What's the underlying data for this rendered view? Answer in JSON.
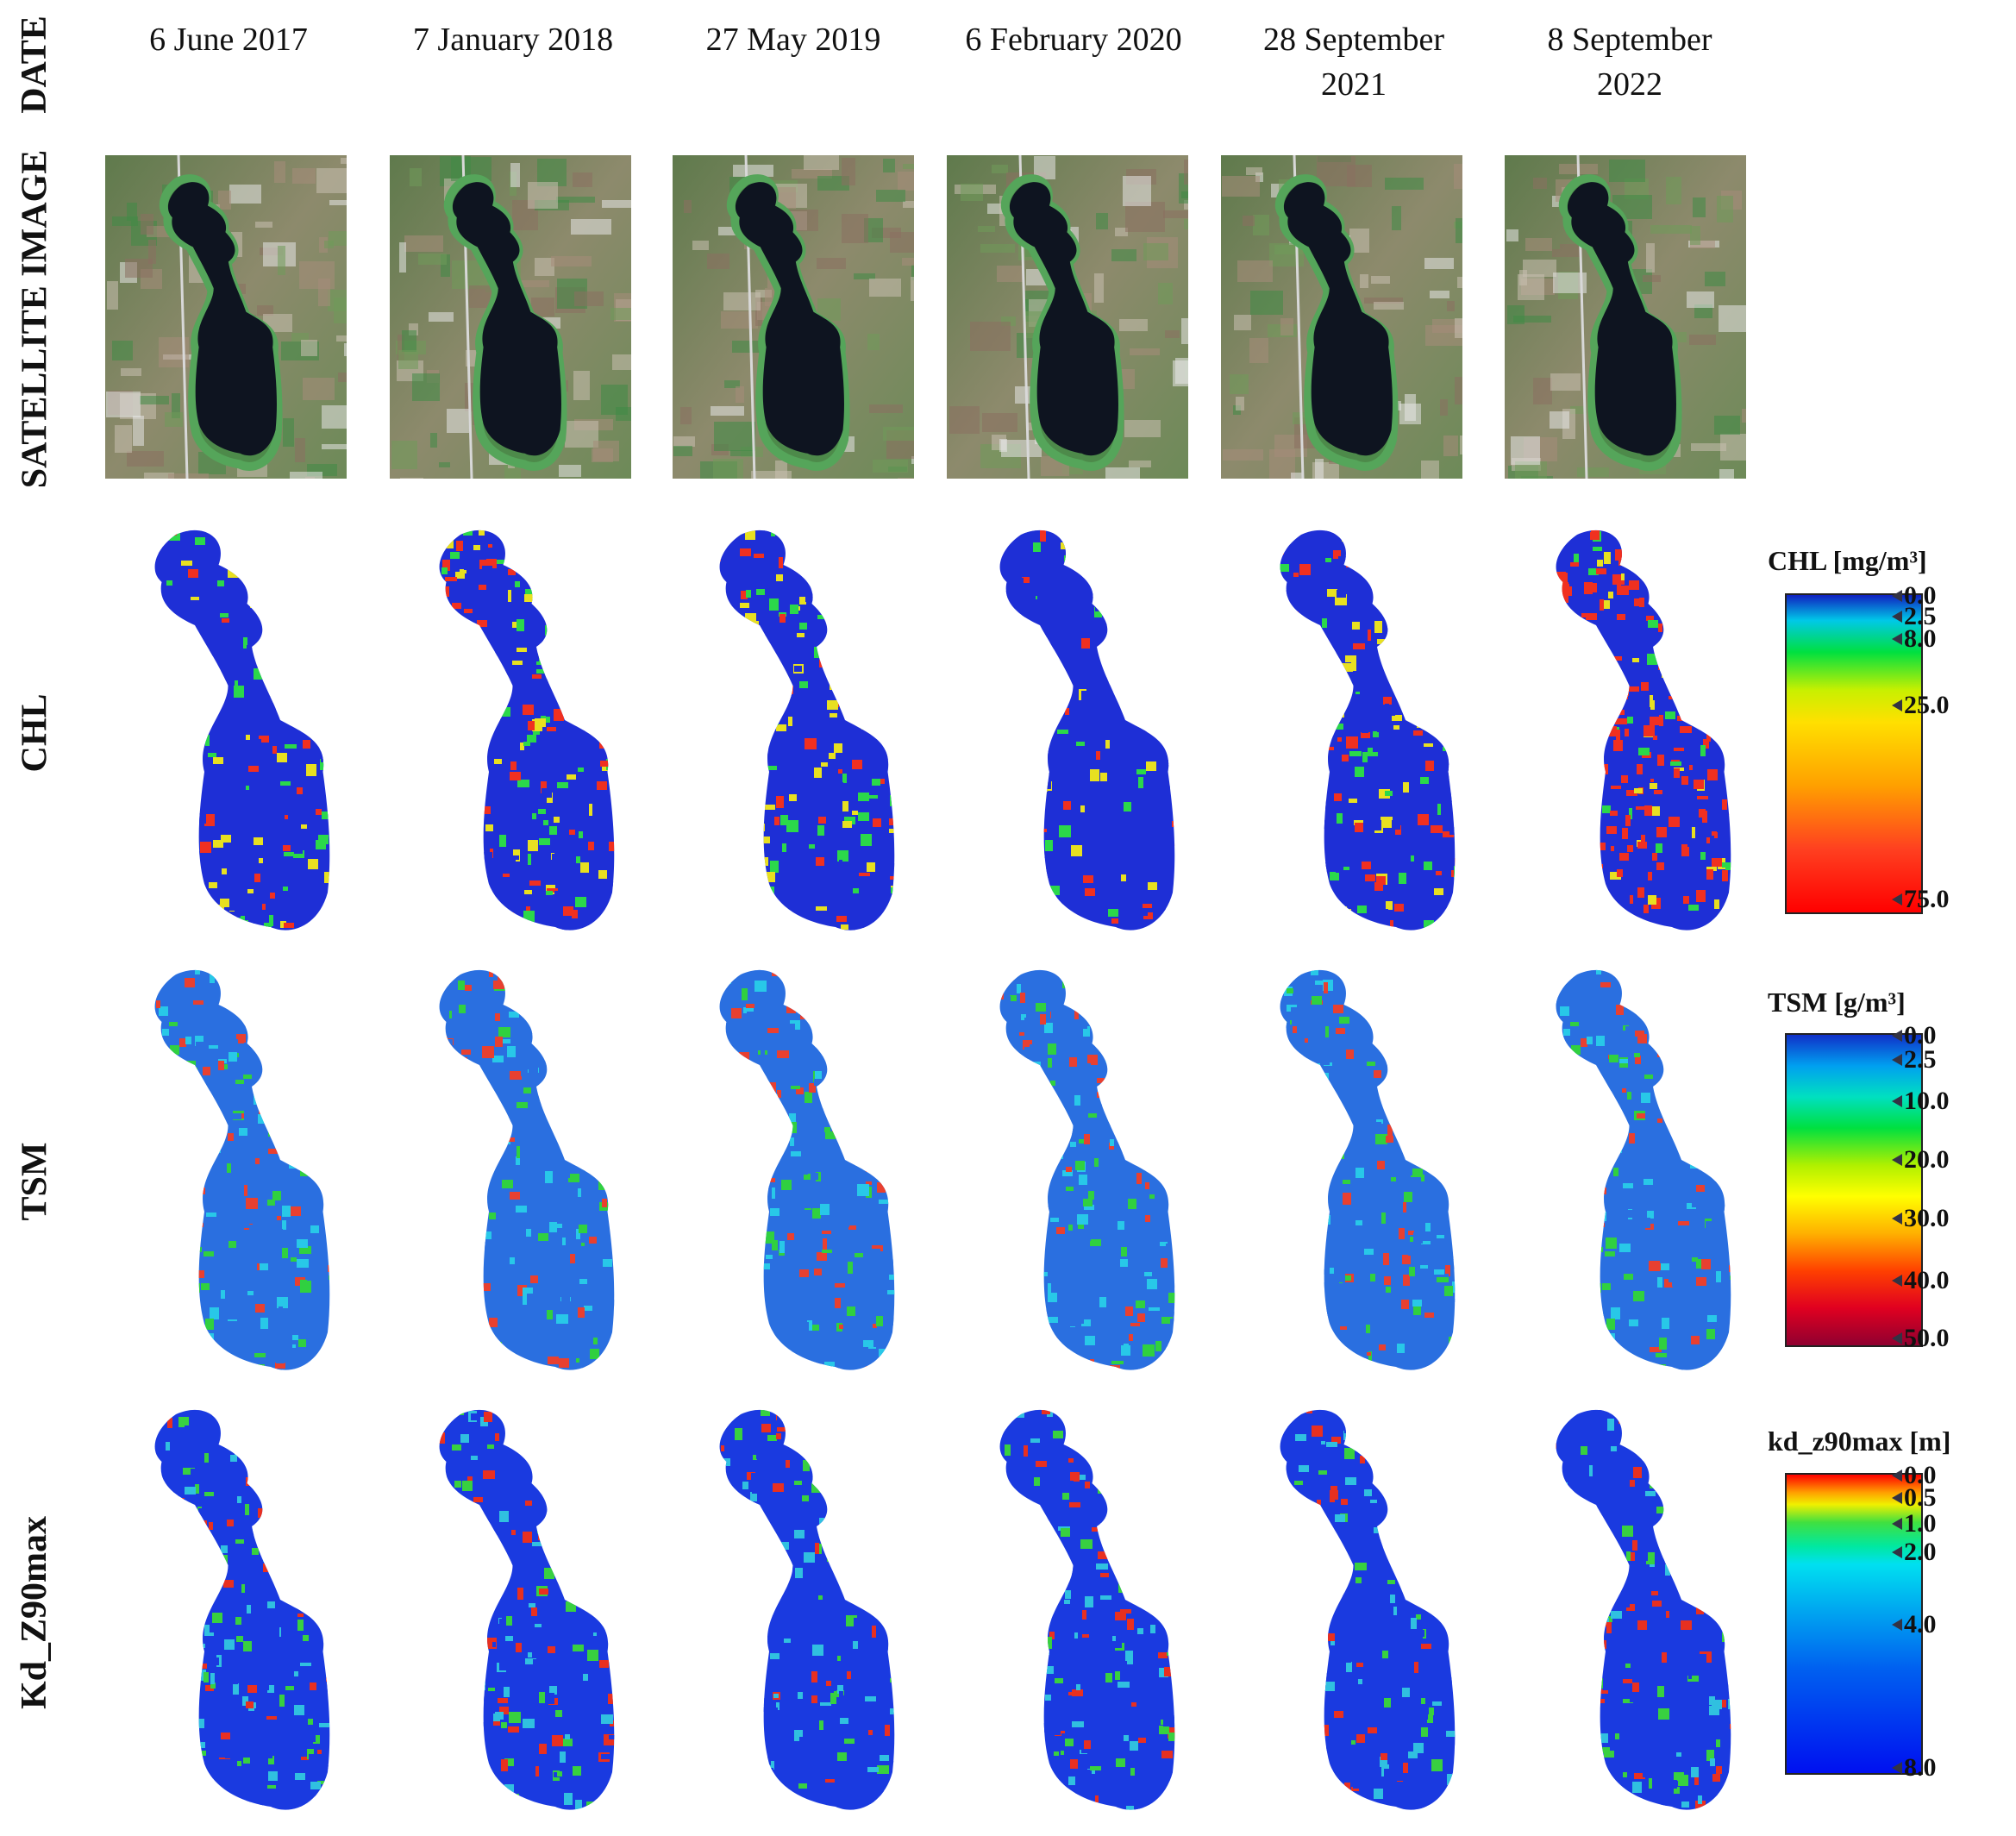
{
  "row_labels": {
    "date": "DATE",
    "satellite": "SATELLITE IMAGE",
    "chl": "CHL",
    "tsm": "TSM",
    "kd": "Kd_Z90max"
  },
  "dates": [
    "6 June 2017",
    "7 January 2018",
    "27 May 2019",
    "6 February 2020",
    "28 September\n2021",
    "8 September\n2022"
  ],
  "colorbars": {
    "chl": {
      "title": "CHL [mg/m³]",
      "ticks": [
        "0.0",
        "2.5",
        "8.0",
        "25.0",
        "75.0"
      ]
    },
    "tsm": {
      "title": "TSM [g/m³]",
      "ticks": [
        "0.0",
        "2.5",
        "10.0",
        "20.0",
        "30.0",
        "40.0",
        "50.0"
      ]
    },
    "kd": {
      "title": "kd_z90max [m]",
      "ticks": [
        "0.0",
        "0.5",
        "1.0",
        "2.0",
        "4.0",
        "8.0"
      ]
    }
  },
  "palette": {
    "chl": [
      "#1e2fd6",
      "#2bd84a",
      "#e8e020",
      "#f03020"
    ],
    "tsm": [
      "#2a6fe0",
      "#28c8e8",
      "#30d040",
      "#e84030"
    ],
    "kd": [
      "#1a3ae0",
      "#30c0e0",
      "#38d040",
      "#e83020"
    ]
  }
}
